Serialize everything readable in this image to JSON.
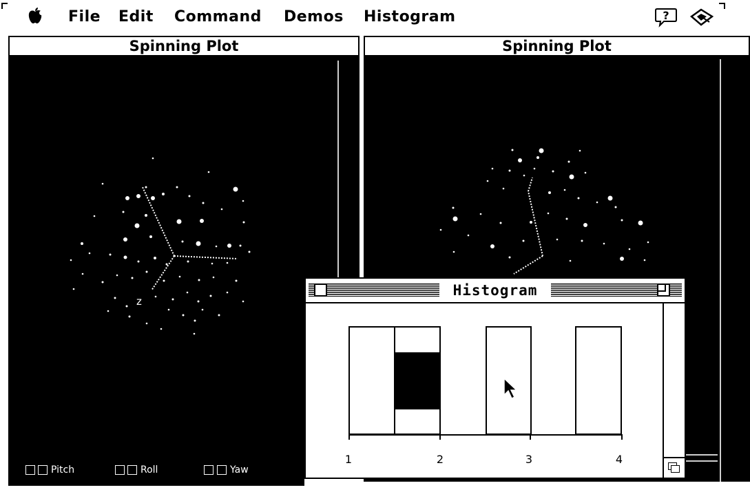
{
  "menubar": {
    "apple": "",
    "items": [
      "File",
      "Edit",
      "Command",
      "Demos",
      "Histogram"
    ],
    "help_icon": "help-balloon-icon",
    "app_icon": "application-icon"
  },
  "windows": [
    {
      "title": "Spinning Plot",
      "axis_label": "z"
    },
    {
      "title": "Spinning Plot"
    }
  ],
  "controls": {
    "labels": [
      "Pitch",
      "Roll",
      "Yaw"
    ]
  },
  "histogram": {
    "title": "Histogram",
    "tick_labels": [
      "1",
      "2",
      "3",
      "4"
    ],
    "bars": [
      {
        "selected_fraction": 0
      },
      {
        "selected_fraction": 0.54
      },
      {
        "selected_fraction": 0
      },
      {
        "selected_fraction": 0
      }
    ]
  }
}
